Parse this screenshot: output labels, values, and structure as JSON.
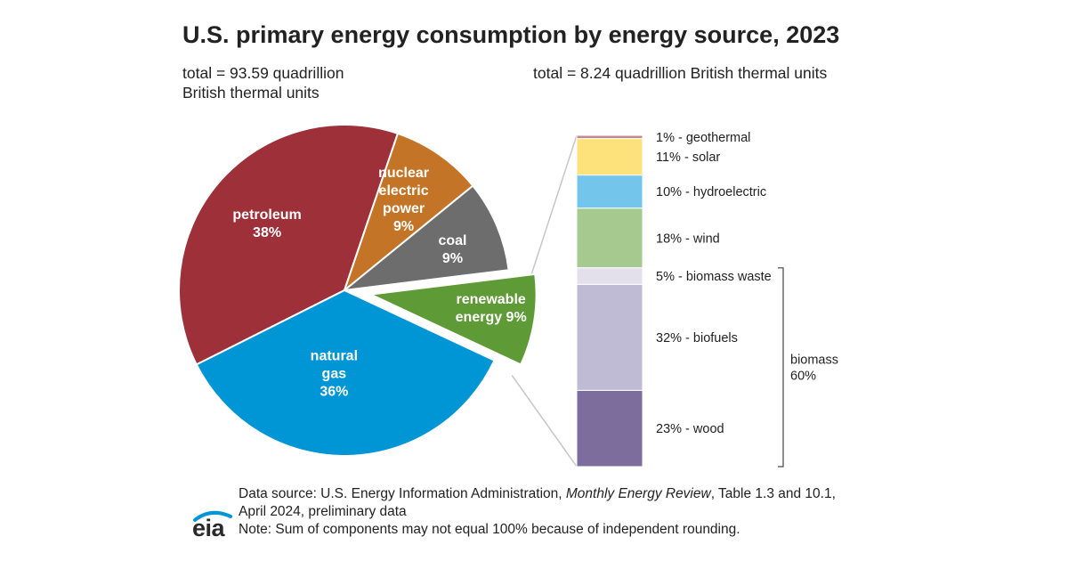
{
  "chart_data": [
    {
      "type": "pie",
      "title": "U.S. primary energy consumption by energy source, 2023",
      "subtitle": [
        "total = 93.59 quadrillion",
        "British thermal units"
      ],
      "unit": "percent",
      "slices": [
        {
          "key": "petroleum",
          "label": [
            "petroleum",
            "38%"
          ],
          "value": 38,
          "color": "#9e3039"
        },
        {
          "key": "nuclear",
          "label": [
            "nuclear",
            "electric",
            "power",
            "9%"
          ],
          "value": 9,
          "color": "#c47427"
        },
        {
          "key": "coal",
          "label": [
            "coal",
            "9%"
          ],
          "value": 9,
          "color": "#6d6d6d"
        },
        {
          "key": "renewable",
          "label": [
            "renewable",
            "energy 9%"
          ],
          "value": 9,
          "color": "#5e9a35",
          "exploded": true
        },
        {
          "key": "natural-gas",
          "label": [
            "natural",
            "gas",
            "36%"
          ],
          "value": 36,
          "color": "#0096d6"
        }
      ]
    },
    {
      "type": "stacked-bar",
      "subtitle": "total = 8.24 quadrillion British thermal units",
      "unit": "percent",
      "segments": [
        {
          "key": "geothermal",
          "label": "1% - geothermal",
          "value": 1,
          "color": "#c7868f"
        },
        {
          "key": "solar",
          "label": "11% - solar",
          "value": 11,
          "color": "#fde27c"
        },
        {
          "key": "hydroelectric",
          "label": "10% - hydroelectric",
          "value": 10,
          "color": "#74c5ec"
        },
        {
          "key": "wind",
          "label": "18% - wind",
          "value": 18,
          "color": "#a6c98f"
        },
        {
          "key": "biomass-waste",
          "label": "5% - biomass waste",
          "value": 5,
          "color": "#e3e0ec"
        },
        {
          "key": "biofuels",
          "label": "32% - biofuels",
          "value": 32,
          "color": "#c0bbd5"
        },
        {
          "key": "wood",
          "label": "23% - wood",
          "value": 23,
          "color": "#7d6d9c"
        }
      ],
      "bracket": {
        "label": [
          "biomass",
          "60%"
        ],
        "from": "biomass-waste",
        "to": "wood"
      }
    }
  ],
  "footer": {
    "source_prefix": "Data source: U.S. Energy Information Administration, ",
    "source_italic": "Monthly Energy Review",
    "source_suffix": ", Table 1.3 and 10.1,",
    "line2": "April 2024, preliminary data",
    "note": "Note: Sum of components may not equal 100% because of independent rounding."
  },
  "logo": {
    "text": "eia",
    "color": "#0096d6"
  }
}
